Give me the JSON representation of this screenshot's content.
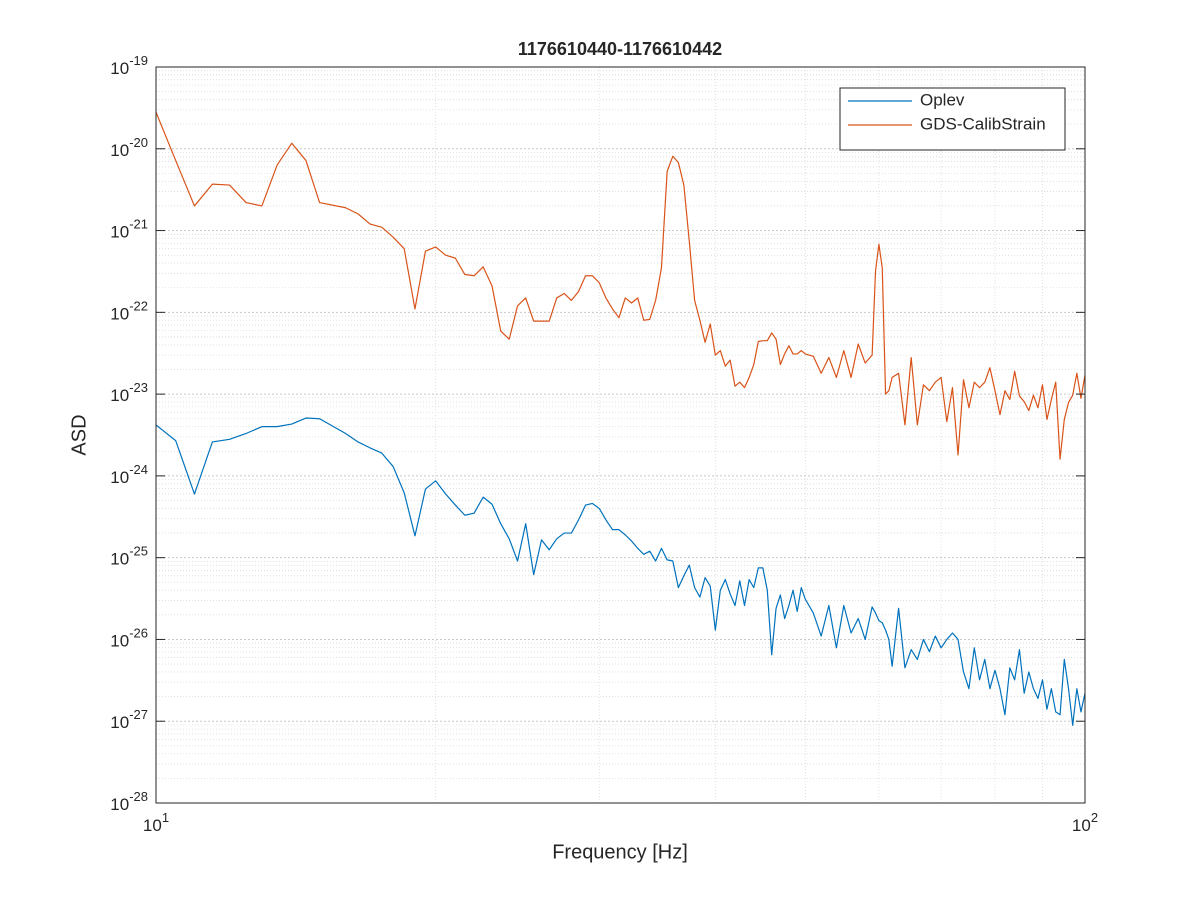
{
  "chart_data": {
    "type": "line",
    "title": "1176610440-1176610442",
    "x_label": "Frequency [Hz]",
    "y_label": "ASD",
    "x": [
      10,
      10.5,
      11,
      11.5,
      12,
      12.5,
      13,
      13.5,
      14,
      14.5,
      15,
      16,
      16.5,
      17,
      17.5,
      18,
      18.5,
      19,
      19.5,
      20,
      20.5,
      21,
      21.5,
      22,
      22.5,
      23,
      23.5,
      24,
      24.5,
      25,
      25.5,
      26,
      26.5,
      27,
      27.5,
      28,
      28.5,
      29,
      29.5,
      30,
      30.5,
      31,
      31.5,
      32,
      32.5,
      33,
      33.5,
      34,
      34.5,
      35,
      35.5,
      36,
      36.5,
      37,
      37.5,
      38,
      38.5,
      39,
      39.5,
      40,
      40.5,
      41,
      41.5,
      42,
      42.5,
      43,
      43.5,
      44,
      44.5,
      45,
      45.5,
      46,
      46.5,
      47,
      47.5,
      48,
      48.5,
      49,
      49.5,
      50,
      51,
      52,
      53,
      54,
      55,
      56,
      57,
      58,
      59,
      59.5,
      60,
      60.5,
      61,
      61.5,
      62,
      63,
      64,
      65,
      66,
      67,
      68,
      69,
      70,
      71,
      72,
      73,
      74,
      75,
      76,
      77,
      78,
      79,
      80,
      81,
      82,
      83,
      84,
      85,
      86,
      87,
      88,
      89,
      90,
      91,
      92,
      93,
      94,
      95,
      96,
      97,
      98,
      99,
      100
    ],
    "series": [
      {
        "name": "Oplev",
        "color": "#0072bd",
        "values": [
          4.2e-24,
          2.7e-24,
          6e-25,
          2.6e-24,
          2.8e-24,
          3.3e-24,
          4e-24,
          4e-24,
          4.3e-24,
          5.1e-24,
          5e-24,
          3.3e-24,
          2.6e-24,
          2.2e-24,
          1.9e-24,
          1.3e-24,
          6.2e-25,
          1.85e-25,
          6.9e-25,
          8.7e-25,
          6e-25,
          4.4e-25,
          3.3e-25,
          3.5e-25,
          5.5e-25,
          4.5e-25,
          2.6e-25,
          1.7e-25,
          9.1e-26,
          2.6e-25,
          6.2e-26,
          1.65e-25,
          1.25e-25,
          1.7e-25,
          2e-25,
          2e-25,
          2.9e-25,
          4.4e-25,
          4.6e-25,
          4e-25,
          2.9e-25,
          2.2e-25,
          2.2e-25,
          1.9e-25,
          1.6e-25,
          1.3e-25,
          1.1e-25,
          1.2e-25,
          9.1e-26,
          1.3e-25,
          9.4e-26,
          9.1e-26,
          4.3e-26,
          6e-26,
          8.1e-26,
          4.3e-26,
          3.3e-26,
          5.7e-26,
          4.5e-26,
          1.3e-26,
          4e-26,
          5.4e-26,
          3.6e-26,
          2.6e-26,
          5.2e-26,
          2.6e-26,
          5.4e-26,
          4.3e-26,
          7.5e-26,
          7.5e-26,
          4e-26,
          6.5e-27,
          2.4e-26,
          3.5e-26,
          1.8e-26,
          2.6e-26,
          4e-26,
          2.2e-26,
          4.3e-26,
          3.1e-26,
          2.1e-26,
          1.1e-26,
          2.6e-26,
          7.9e-27,
          2.6e-26,
          1.2e-26,
          1.8e-26,
          1e-26,
          2.5e-26,
          2.1e-26,
          1.7e-26,
          1.6e-26,
          1.3e-26,
          1e-26,
          4.7e-27,
          2.4e-26,
          4.5e-27,
          7.5e-27,
          5.7e-27,
          1e-26,
          7.1e-27,
          1.1e-26,
          7.9e-27,
          1e-26,
          1.2e-26,
          1e-26,
          4e-27,
          2.5e-27,
          7.9e-27,
          3.2e-27,
          5.7e-27,
          2.5e-27,
          4.2e-27,
          2.5e-27,
          1.2e-27,
          4.5e-27,
          3.2e-27,
          7.5e-27,
          2.2e-27,
          4e-27,
          2.5e-27,
          1.9e-27,
          3.2e-27,
          1.4e-27,
          2.5e-27,
          1.3e-27,
          1.2e-27,
          5.7e-27,
          2.5e-27,
          8.9e-28,
          2.5e-27,
          1.3e-27,
          2.2e-27
        ]
      },
      {
        "name": "GDS-CalibStrain",
        "color": "#d95319",
        "values": [
          2.8e-20,
          7.2e-21,
          2e-21,
          3.7e-21,
          3.6e-21,
          2.2e-21,
          2e-21,
          6.3e-21,
          1.17e-20,
          7.2e-21,
          2.2e-21,
          1.9e-21,
          1.6e-21,
          1.2e-21,
          1.1e-21,
          8.3e-22,
          6e-22,
          1.1e-22,
          5.6e-22,
          6.3e-22,
          5e-22,
          4.6e-22,
          2.9e-22,
          2.8e-22,
          3.6e-22,
          2.1e-22,
          5.9e-23,
          4.7e-23,
          1.2e-22,
          1.5e-22,
          7.8e-23,
          7.8e-23,
          7.8e-23,
          1.5e-22,
          1.7e-22,
          1.4e-22,
          1.8e-22,
          2.8e-22,
          2.8e-22,
          2.3e-22,
          1.5e-22,
          1.1e-22,
          8.6e-23,
          1.5e-22,
          1.3e-22,
          1.5e-22,
          8e-23,
          8.2e-23,
          1.4e-22,
          3.5e-22,
          5.3e-21,
          8.1e-21,
          6.8e-21,
          3.6e-21,
          7.4e-22,
          1.4e-22,
          8e-23,
          4.3e-23,
          7.2e-23,
          3e-23,
          3.4e-23,
          2.2e-23,
          2.6e-23,
          1.25e-23,
          1.4e-23,
          1.2e-23,
          1.6e-23,
          2.3e-23,
          4.4e-23,
          4.5e-23,
          4.5e-23,
          5.6e-23,
          4.7e-23,
          2.3e-23,
          3.1e-23,
          3.9e-23,
          3.1e-23,
          3.1e-23,
          3.4e-23,
          3.1e-23,
          2.9e-23,
          1.8e-23,
          2.8e-23,
          1.6e-23,
          3.4e-23,
          1.6e-23,
          4.1e-23,
          2.4e-23,
          3e-23,
          3.2e-22,
          6.8e-22,
          3.5e-22,
          1e-23,
          1.1e-23,
          1.6e-23,
          1.8e-23,
          4.2e-24,
          2.8e-23,
          4.2e-24,
          1.3e-23,
          1.1e-23,
          1.4e-23,
          1.6e-23,
          4.6e-24,
          1.2e-23,
          1.8e-24,
          1.5e-23,
          6.8e-24,
          1.4e-23,
          1.2e-23,
          1.4e-23,
          2.1e-23,
          1.1e-23,
          5.6e-24,
          1.1e-23,
          8.6e-24,
          1.9e-23,
          9.5e-24,
          8.1e-24,
          6.3e-24,
          9.7e-24,
          6.8e-24,
          1.3e-23,
          4.9e-24,
          8.6e-24,
          1.4e-23,
          1.6e-24,
          4.9e-24,
          7.9e-24,
          9.7e-24,
          1.8e-23,
          8.9e-24,
          1.7e-23
        ]
      }
    ],
    "xlim": [
      10,
      100
    ],
    "ylim": [
      1e-28,
      1e-19
    ],
    "x_log": true,
    "y_log": true,
    "xticks": [
      {
        "value": 10,
        "label": "101"
      },
      {
        "value": 100,
        "label": "102"
      }
    ],
    "yticks": [
      {
        "value": 1e-28,
        "label": "10-28"
      },
      {
        "value": 1e-27,
        "label": "10-27"
      },
      {
        "value": 1e-26,
        "label": "10-26"
      },
      {
        "value": 1e-25,
        "label": "10-25"
      },
      {
        "value": 1e-24,
        "label": "10-24"
      },
      {
        "value": 1e-23,
        "label": "10-23"
      },
      {
        "value": 1e-22,
        "label": "10-22"
      },
      {
        "value": 1e-21,
        "label": "10-21"
      },
      {
        "value": 1e-20,
        "label": "10-20"
      },
      {
        "value": 1e-19,
        "label": "10-19"
      }
    ],
    "grid": true,
    "minor_grid": true,
    "legend": "northeast"
  }
}
